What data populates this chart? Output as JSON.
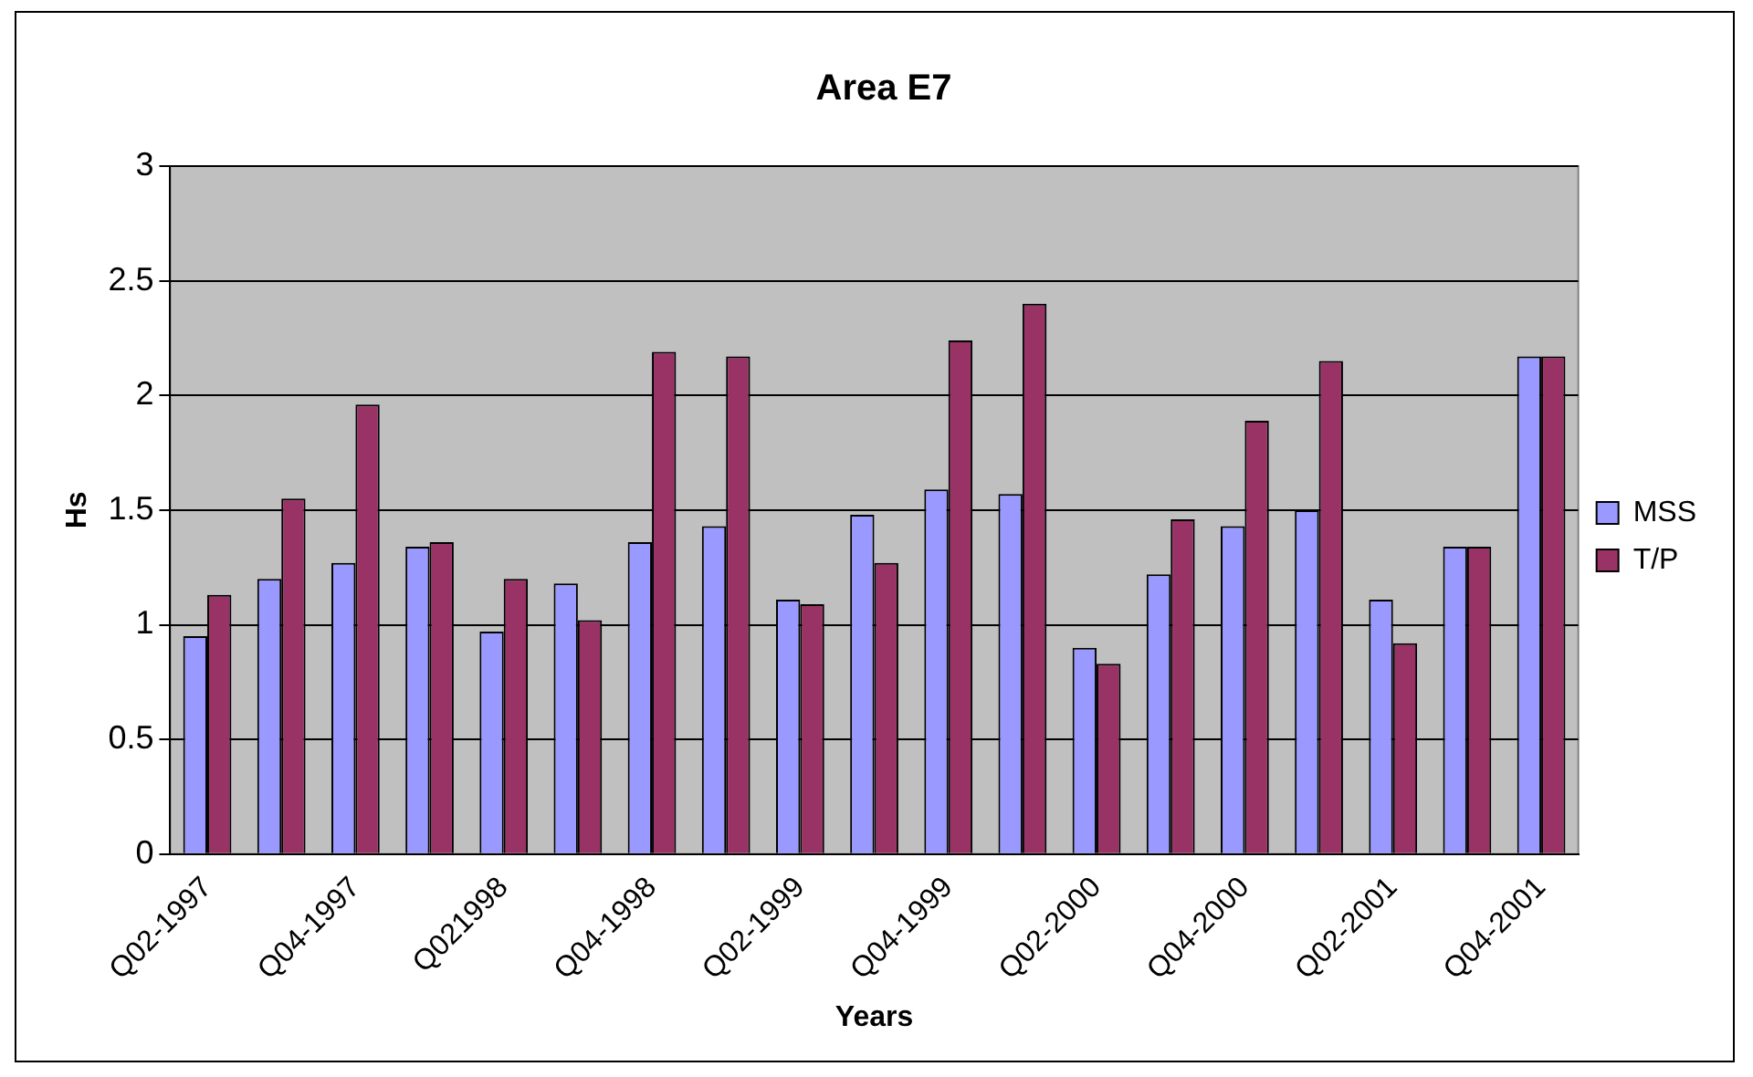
{
  "chart_data": {
    "type": "bar",
    "title": "Area E7",
    "xlabel": "Years",
    "ylabel": "Hs",
    "categories": [
      "Q02-1997",
      null,
      "Q04-1997",
      null,
      "Q021998",
      null,
      "Q04-1998",
      null,
      "Q02-1999",
      null,
      "Q04-1999",
      null,
      "Q02-2000",
      null,
      "Q04-2000",
      null,
      "Q02-2001",
      null,
      "Q04-2001"
    ],
    "series": [
      {
        "name": "MSS",
        "color": "#9999ff",
        "values": [
          0.95,
          1.2,
          1.27,
          1.34,
          0.97,
          1.18,
          1.36,
          1.43,
          1.11,
          1.48,
          1.59,
          1.57,
          0.9,
          1.22,
          1.43,
          1.5,
          1.11,
          1.34,
          2.17
        ]
      },
      {
        "name": "T/P",
        "color": "#993366",
        "values": [
          1.13,
          1.55,
          1.96,
          1.36,
          1.2,
          1.02,
          2.19,
          2.17,
          1.09,
          1.27,
          2.24,
          2.4,
          0.83,
          1.46,
          1.89,
          2.15,
          0.92,
          1.34,
          2.17
        ]
      }
    ],
    "ylim": [
      0,
      3
    ],
    "yticks": [
      0,
      0.5,
      1,
      1.5,
      2,
      2.5,
      3
    ],
    "grid": "y",
    "legend": "right"
  }
}
